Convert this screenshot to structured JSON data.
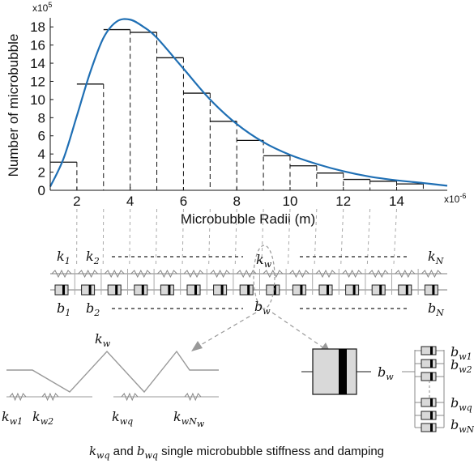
{
  "chart_data": {
    "type": "bar",
    "ylabel": "Number of microbubble",
    "xlabel": "Microbubble Radii (m)",
    "x_exponent": "x10",
    "x_exponent_power": "-6",
    "y_exponent": "x10",
    "y_exponent_power": "5",
    "xlim": [
      1,
      15.9
    ],
    "ylim": [
      0,
      19
    ],
    "xticks": [
      "2",
      "4",
      "6",
      "8",
      "10",
      "12",
      "14"
    ],
    "yticks": [
      "0",
      "2",
      "4",
      "6",
      "8",
      "10",
      "12",
      "14",
      "16",
      "18"
    ],
    "bins": [
      {
        "x0": 1,
        "x1": 2,
        "value": 3.1
      },
      {
        "x0": 2,
        "x1": 3,
        "value": 11.7
      },
      {
        "x0": 3,
        "x1": 4,
        "value": 17.7
      },
      {
        "x0": 4,
        "x1": 5,
        "value": 17.4
      },
      {
        "x0": 5,
        "x1": 6,
        "value": 14.6
      },
      {
        "x0": 6,
        "x1": 7,
        "value": 10.7
      },
      {
        "x0": 7,
        "x1": 8,
        "value": 7.6
      },
      {
        "x0": 8,
        "x1": 9,
        "value": 5.5
      },
      {
        "x0": 9,
        "x1": 10,
        "value": 3.8
      },
      {
        "x0": 10,
        "x1": 11,
        "value": 2.7
      },
      {
        "x0": 11,
        "x1": 12,
        "value": 1.9
      },
      {
        "x0": 12,
        "x1": 13,
        "value": 1.2
      },
      {
        "x0": 13,
        "x1": 14,
        "value": 1.0
      },
      {
        "x0": 14,
        "x1": 15,
        "value": 0.7
      }
    ],
    "curve": {
      "x": [
        1,
        1.5,
        2,
        2.5,
        3,
        3.5,
        4,
        4.5,
        5,
        6,
        7,
        8,
        9,
        10,
        11,
        12,
        13,
        14,
        15,
        15.9
      ],
      "y": [
        0.4,
        3.5,
        8.2,
        13.0,
        16.8,
        18.6,
        18.8,
        18.0,
        16.8,
        13.4,
        10.0,
        7.3,
        5.3,
        3.9,
        2.9,
        2.1,
        1.5,
        1.1,
        0.8,
        0.5
      ]
    },
    "curve_color": "#1f6fb4",
    "grid": false
  },
  "spring_array": {
    "top_labels": {
      "k1": "k",
      "k1_sub": "1",
      "k2": "k",
      "k2_sub": "2",
      "kw": "k",
      "kw_sub": "w",
      "kN": "k",
      "kN_sub": "N"
    },
    "bottom_labels": {
      "b1": "b",
      "b1_sub": "1",
      "b2": "b",
      "b2_sub": "2",
      "bw": "b",
      "bw_sub": "w",
      "bN": "b",
      "bN_sub": "N"
    }
  },
  "detail": {
    "kw": "k",
    "kw_sub": "w",
    "kw1": "k",
    "kw1_sub": "w1",
    "kw2": "k",
    "kw2_sub": "w2",
    "kwq": "k",
    "kwq_sub": "wq",
    "kwNw": "k",
    "kwNw_sub": "wN",
    "kwNw_subsub": "w",
    "bw": "b",
    "bw_sub": "w",
    "bw1": "b",
    "bw1_sub": "w1",
    "bw2": "b",
    "bw2_sub": "w2",
    "bwq": "b",
    "bwq_sub": "wq",
    "bwN": "b",
    "bwN_sub": "wN"
  },
  "caption": {
    "k": "k",
    "k_sub": "wq",
    "and": " and ",
    "b": "b",
    "b_sub": "wq",
    "rest": " single microbubble stiffness and damping"
  }
}
